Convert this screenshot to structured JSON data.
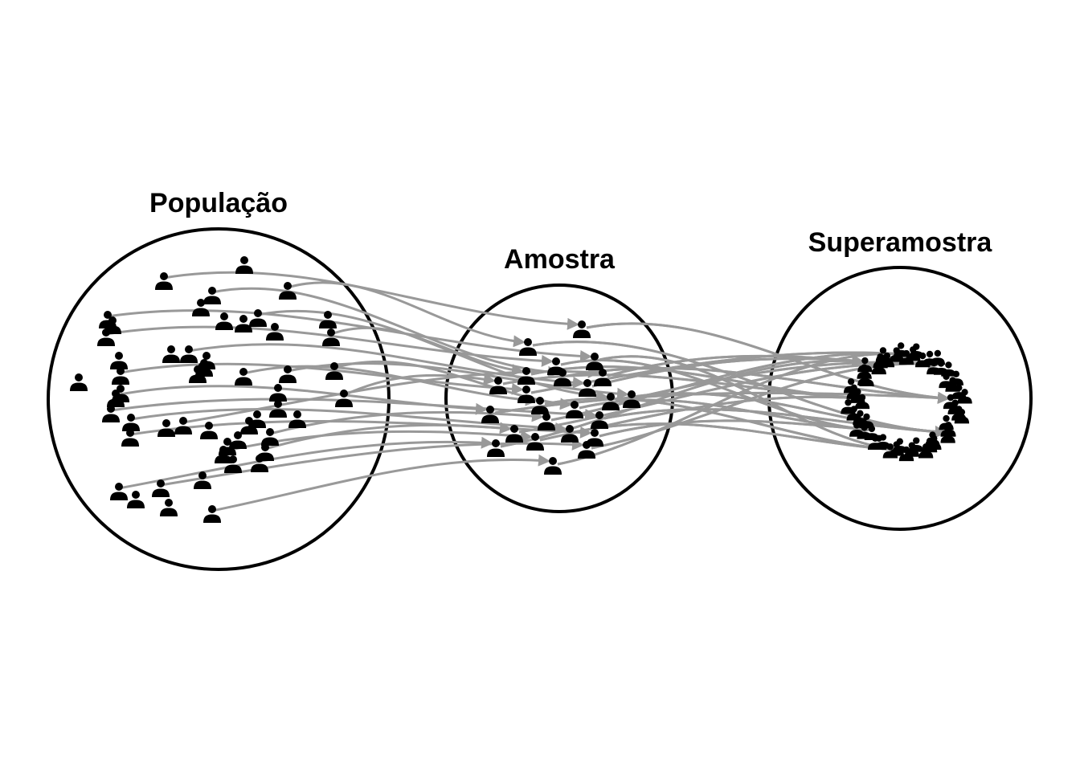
{
  "labels": {
    "population": "População",
    "sample": "Amostra",
    "supersample": "Superamostra"
  },
  "colors": {
    "outline": "#000000",
    "arrows": "#999999",
    "person": "#000000",
    "background": "#ffffff"
  },
  "icon": "person-icon",
  "counts": {
    "population_people": 73,
    "sample_people": 24,
    "supersample_people": 56
  }
}
